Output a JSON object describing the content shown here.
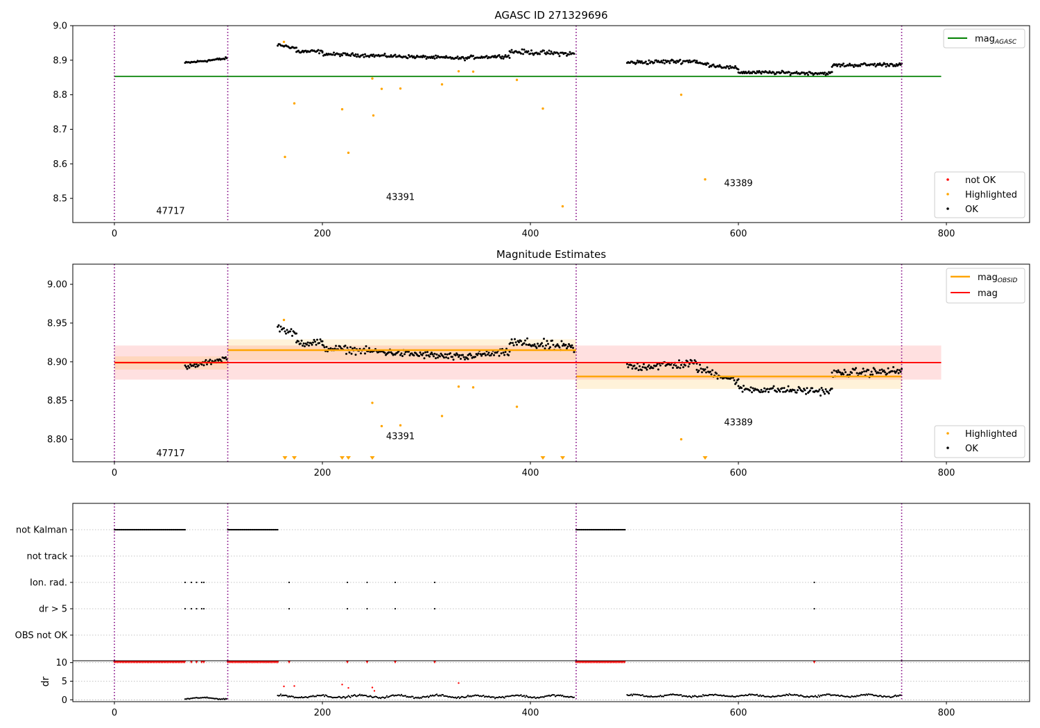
{
  "chart_data": [
    {
      "type": "scatter",
      "title": "AGASC ID 271329696",
      "xlim": [
        -40,
        880
      ],
      "ylim": [
        8.43,
        9.0
      ],
      "xticks": [
        0,
        200,
        400,
        600,
        800
      ],
      "yticks": [
        8.5,
        8.6,
        8.7,
        8.8,
        8.9,
        9.0
      ],
      "ytick_labels": [
        "8.5",
        "8.6",
        "8.7",
        "8.8",
        "8.9",
        "9.0"
      ],
      "obsid_boundaries": [
        0,
        109,
        444,
        757
      ],
      "obsid_labels": [
        {
          "text": "47717",
          "x": 54,
          "y": 8.455
        },
        {
          "text": "43391",
          "x": 275,
          "y": 8.495
        },
        {
          "text": "43389",
          "x": 600,
          "y": 8.535
        }
      ],
      "reference_line": {
        "name": "mag_AGASC",
        "y": 8.853,
        "x_range": [
          0,
          795
        ],
        "color": "#008000"
      },
      "legend_upper": {
        "position": "upper right",
        "entries": [
          {
            "label": "mag",
            "sub": "AGASC",
            "color": "#008000"
          }
        ]
      },
      "legend_lower": {
        "position": "lower right",
        "entries": [
          {
            "label": "not OK",
            "color": "#ff0000"
          },
          {
            "label": "Highlighted",
            "color": "#ffa500"
          },
          {
            "label": "OK",
            "color": "#000000"
          }
        ]
      },
      "ok_segments": [
        {
          "x0": 68,
          "x1": 108,
          "y0": 8.892,
          "y1": 8.905,
          "amp": 0.005
        },
        {
          "x0": 157,
          "x1": 175,
          "y0": 8.945,
          "y1": 8.935,
          "amp": 0.006
        },
        {
          "x0": 175,
          "x1": 200,
          "y0": 8.925,
          "y1": 8.925,
          "amp": 0.008
        },
        {
          "x0": 200,
          "x1": 340,
          "y0": 8.918,
          "y1": 8.905,
          "amp": 0.007
        },
        {
          "x0": 340,
          "x1": 380,
          "y0": 8.908,
          "y1": 8.912,
          "amp": 0.007
        },
        {
          "x0": 380,
          "x1": 442,
          "y0": 8.925,
          "y1": 8.918,
          "amp": 0.01
        },
        {
          "x0": 493,
          "x1": 560,
          "y0": 8.893,
          "y1": 8.898,
          "amp": 0.009
        },
        {
          "x0": 560,
          "x1": 600,
          "y0": 8.892,
          "y1": 8.875,
          "amp": 0.008
        },
        {
          "x0": 600,
          "x1": 690,
          "y0": 8.865,
          "y1": 8.862,
          "amp": 0.007
        },
        {
          "x0": 690,
          "x1": 757,
          "y0": 8.885,
          "y1": 8.888,
          "amp": 0.008
        }
      ],
      "highlighted_points": [
        [
          163,
          8.953
        ],
        [
          164,
          8.62
        ],
        [
          173,
          8.775
        ],
        [
          219,
          8.758
        ],
        [
          225,
          8.632
        ],
        [
          248,
          8.847
        ],
        [
          249,
          8.74
        ],
        [
          257,
          8.817
        ],
        [
          275,
          8.818
        ],
        [
          315,
          8.83
        ],
        [
          331,
          8.868
        ],
        [
          345,
          8.867
        ],
        [
          387,
          8.843
        ],
        [
          412,
          8.76
        ],
        [
          431,
          8.477
        ],
        [
          545,
          8.8
        ],
        [
          568,
          8.555
        ]
      ]
    },
    {
      "type": "scatter",
      "title": "Magnitude Estimates",
      "xlim": [
        -40,
        880
      ],
      "ylim": [
        8.771,
        9.026
      ],
      "xticks": [
        0,
        200,
        400,
        600,
        800
      ],
      "yticks": [
        8.8,
        8.85,
        8.9,
        8.95,
        9.0
      ],
      "ytick_labels": [
        "8.80",
        "8.85",
        "8.90",
        "8.95",
        "9.00"
      ],
      "obsid_boundaries": [
        0,
        109,
        444,
        757
      ],
      "obsid_labels": [
        {
          "text": "47717",
          "x": 54,
          "y": 8.778
        },
        {
          "text": "43391",
          "x": 275,
          "y": 8.8
        },
        {
          "text": "43389",
          "x": 600,
          "y": 8.818
        }
      ],
      "mag_line": {
        "name": "mag",
        "y": 8.899,
        "band": [
          8.877,
          8.921
        ],
        "x_range": [
          0,
          795
        ],
        "color": "#ff0000"
      },
      "mag_obsid_segments": [
        {
          "x0": 0,
          "x1": 109,
          "y": 8.899,
          "band": [
            8.89,
            8.907
          ]
        },
        {
          "x0": 109,
          "x1": 444,
          "y": 8.915,
          "band": [
            8.902,
            8.929
          ]
        },
        {
          "x0": 444,
          "x1": 757,
          "y": 8.881,
          "band": [
            8.865,
            8.898
          ]
        }
      ],
      "legend_upper": {
        "position": "upper right",
        "entries": [
          {
            "label": "mag",
            "sub": "OBSID",
            "color": "#ffa500"
          },
          {
            "label": "mag",
            "sub": "",
            "color": "#ff0000"
          }
        ]
      },
      "legend_lower": {
        "position": "lower right",
        "entries": [
          {
            "label": "Highlighted",
            "color": "#ffa500"
          },
          {
            "label": "OK",
            "color": "#000000"
          }
        ]
      },
      "ok_segments": [
        {
          "x0": 68,
          "x1": 108,
          "y0": 8.892,
          "y1": 8.905,
          "amp": 0.005
        },
        {
          "x0": 157,
          "x1": 175,
          "y0": 8.945,
          "y1": 8.935,
          "amp": 0.006
        },
        {
          "x0": 175,
          "x1": 200,
          "y0": 8.925,
          "y1": 8.925,
          "amp": 0.008
        },
        {
          "x0": 200,
          "x1": 340,
          "y0": 8.918,
          "y1": 8.905,
          "amp": 0.007
        },
        {
          "x0": 340,
          "x1": 380,
          "y0": 8.908,
          "y1": 8.912,
          "amp": 0.007
        },
        {
          "x0": 380,
          "x1": 442,
          "y0": 8.925,
          "y1": 8.918,
          "amp": 0.01
        },
        {
          "x0": 493,
          "x1": 560,
          "y0": 8.893,
          "y1": 8.898,
          "amp": 0.009
        },
        {
          "x0": 560,
          "x1": 600,
          "y0": 8.892,
          "y1": 8.875,
          "amp": 0.008
        },
        {
          "x0": 600,
          "x1": 690,
          "y0": 8.865,
          "y1": 8.862,
          "amp": 0.007
        },
        {
          "x0": 690,
          "x1": 757,
          "y0": 8.885,
          "y1": 8.888,
          "amp": 0.008
        }
      ],
      "highlighted_points": [
        [
          163,
          8.954
        ],
        [
          248,
          8.847
        ],
        [
          257,
          8.817
        ],
        [
          275,
          8.818
        ],
        [
          315,
          8.83
        ],
        [
          331,
          8.868
        ],
        [
          345,
          8.867
        ],
        [
          387,
          8.842
        ],
        [
          545,
          8.8
        ]
      ],
      "offscale_markers_x": [
        164,
        173,
        219,
        225,
        248,
        412,
        431,
        568
      ]
    },
    {
      "type": "scatter",
      "title": "",
      "xlim": [
        -40,
        880
      ],
      "obsid_boundaries": [
        0,
        109,
        444,
        757
      ],
      "flag_labels": [
        "not Kalman",
        "not track",
        "Ion. rad.",
        "dr > 5",
        "OBS not OK"
      ],
      "flag_ranges": {
        "not Kalman": [
          [
            0,
            68
          ],
          [
            109,
            157
          ],
          [
            444,
            491
          ]
        ],
        "not track": [],
        "Ion. rad.": [],
        "dr > 5": [],
        "OBS not OK": []
      },
      "flag_points": {
        "Ion. rad.": [
          68,
          74,
          79,
          84,
          86,
          168,
          224,
          243,
          270,
          308,
          673
        ],
        "dr > 5": [
          68,
          74,
          79,
          84,
          86,
          168,
          224,
          243,
          270,
          308,
          673
        ]
      }
    },
    {
      "type": "scatter",
      "title": "",
      "ylabel": "dr",
      "xlim": [
        -40,
        880
      ],
      "ylim": [
        -0.5,
        10.5
      ],
      "xticks": [
        0,
        200,
        400,
        600,
        800
      ],
      "yticks": [
        0,
        5,
        10
      ],
      "ytick_labels": [
        "0",
        "5",
        "10"
      ],
      "obsid_boundaries": [
        0,
        109,
        444,
        757
      ],
      "capped_value": 10,
      "capped_ranges": [
        [
          0,
          68
        ],
        [
          109,
          157
        ],
        [
          444,
          491
        ]
      ],
      "capped_points": [
        74,
        79,
        84,
        86,
        168,
        224,
        243,
        270,
        308,
        673
      ],
      "red_points": [
        [
          163,
          3.6
        ],
        [
          173,
          3.7
        ],
        [
          219,
          4.1
        ],
        [
          225,
          3.2
        ],
        [
          248,
          3.3
        ],
        [
          250,
          2.4
        ],
        [
          331,
          4.5
        ]
      ],
      "ok_segments": [
        {
          "x0": 68,
          "x1": 108,
          "base": 0.4,
          "amp": 0.35
        },
        {
          "x0": 157,
          "x1": 442,
          "base": 0.9,
          "amp": 0.6
        },
        {
          "x0": 493,
          "x1": 757,
          "base": 1.1,
          "amp": 0.55
        }
      ]
    }
  ]
}
